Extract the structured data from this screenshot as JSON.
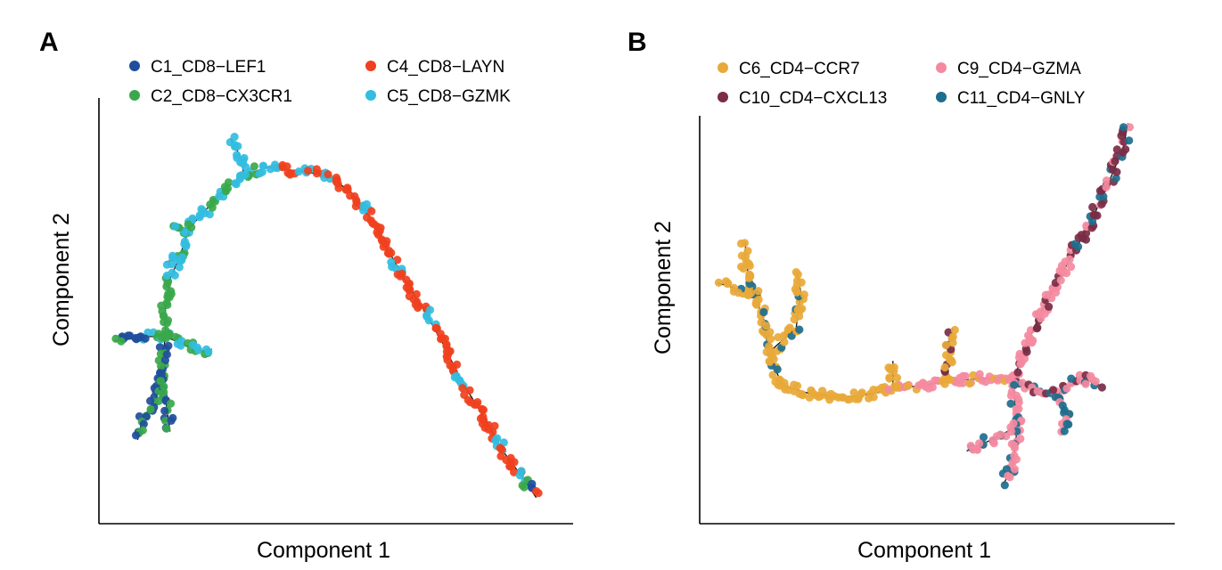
{
  "figure": {
    "panels": [
      {
        "letter": "A",
        "chart_data": {
          "type": "scatter",
          "xlabel": "Component 1",
          "ylabel": "Component 2",
          "grid": false,
          "axis_ticks": false,
          "legend_placement": "top-left",
          "xlim": [
            0,
            100
          ],
          "ylim": [
            0,
            100
          ],
          "series": [
            {
              "name": "C1_CD8−LEF1",
              "color": "#1f4e9c"
            },
            {
              "name": "C2_CD8−CX3CR1",
              "color": "#3aa84a"
            },
            {
              "name": "C4_CD8−LAYN",
              "color": "#f0401e"
            },
            {
              "name": "C5_CD8−GZMK",
              "color": "#33bde0"
            }
          ],
          "trajectory": [
            [
              9,
              44
            ],
            [
              13,
              44
            ],
            [
              17,
              42
            ],
            [
              22,
              40
            ],
            [
              23,
              41
            ]
          ],
          "trajectory_branches": [
            [
              [
                9,
                44
              ],
              [
                3,
                43
              ],
              [
                2,
                43
              ]
            ],
            [
              [
                13,
                44
              ],
              [
                13,
                52
              ],
              [
                14,
                58
              ],
              [
                16,
                63
              ],
              [
                18,
                70
              ],
              [
                22,
                75
              ],
              [
                26,
                80
              ],
              [
                30,
                83
              ],
              [
                35,
                85
              ],
              [
                42,
                84
              ],
              [
                48,
                83
              ],
              [
                53,
                79
              ],
              [
                57,
                73
              ],
              [
                61,
                65
              ],
              [
                65,
                57
              ],
              [
                69,
                50
              ],
              [
                73,
                42
              ],
              [
                77,
                33
              ],
              [
                82,
                24
              ],
              [
                86,
                16
              ],
              [
                90,
                10
              ],
              [
                93,
                5
              ]
            ],
            [
              [
                13,
                44
              ],
              [
                12,
                36
              ],
              [
                11,
                29
              ],
              [
                8,
                24
              ],
              [
                7,
                19
              ]
            ],
            [
              [
                12,
                36
              ],
              [
                13,
                29
              ],
              [
                14,
                21
              ]
            ],
            [
              [
                30,
                83
              ],
              [
                29,
                88
              ],
              [
                27,
                92
              ]
            ],
            [
              [
                16,
                63
              ],
              [
                13,
                62
              ]
            ],
            [
              [
                18,
                70
              ],
              [
                14,
                71
              ]
            ]
          ]
        }
      },
      {
        "letter": "B",
        "chart_data": {
          "type": "scatter",
          "xlabel": "Component 1",
          "ylabel": "Component 2",
          "grid": false,
          "axis_ticks": false,
          "legend_placement": "top-left",
          "xlim": [
            0,
            100
          ],
          "ylim": [
            0,
            100
          ],
          "series": [
            {
              "name": "C6_CD4−CCR7",
              "color": "#e8a93a"
            },
            {
              "name": "C9_CD4−GZMA",
              "color": "#f48aa0"
            },
            {
              "name": "C10_CD4−CXCL13",
              "color": "#7a2d45"
            },
            {
              "name": "C11_CD4−GNLY",
              "color": "#1d6e8e"
            }
          ],
          "trajectory": [
            [
              16,
              32
            ],
            [
              22,
              30
            ],
            [
              30,
              29
            ],
            [
              40,
              31
            ],
            [
              52,
              33
            ],
            [
              62,
              34
            ],
            [
              66,
              33
            ]
          ],
          "trajectory_branches": [
            [
              [
                16,
                32
              ],
              [
                13,
                40
              ],
              [
                12,
                48
              ],
              [
                10,
                54
              ],
              [
                5,
                56
              ],
              [
                2,
                57
              ]
            ],
            [
              [
                10,
                54
              ],
              [
                8,
                62
              ],
              [
                8,
                67
              ]
            ],
            [
              [
                13,
                40
              ],
              [
                19,
                46
              ],
              [
                20,
                55
              ],
              [
                19,
                60
              ]
            ],
            [
              [
                66,
                33
              ],
              [
                69,
                42
              ],
              [
                73,
                52
              ],
              [
                78,
                62
              ],
              [
                83,
                72
              ],
              [
                87,
                82
              ],
              [
                90,
                90
              ],
              [
                91,
                96
              ]
            ],
            [
              [
                66,
                33
              ],
              [
                71,
                31
              ],
              [
                76,
                30
              ],
              [
                81,
                34
              ],
              [
                85,
                32
              ]
            ],
            [
              [
                66,
                33
              ],
              [
                67,
                22
              ],
              [
                66,
                12
              ],
              [
                64,
                8
              ]
            ],
            [
              [
                67,
                22
              ],
              [
                60,
                18
              ],
              [
                56,
                16
              ]
            ],
            [
              [
                76,
                30
              ],
              [
                78,
                24
              ],
              [
                77,
                20
              ]
            ],
            [
              [
                52,
                33
              ],
              [
                52,
                42
              ],
              [
                53,
                46
              ]
            ],
            [
              [
                40,
                31
              ],
              [
                40,
                38
              ]
            ]
          ]
        }
      }
    ]
  }
}
